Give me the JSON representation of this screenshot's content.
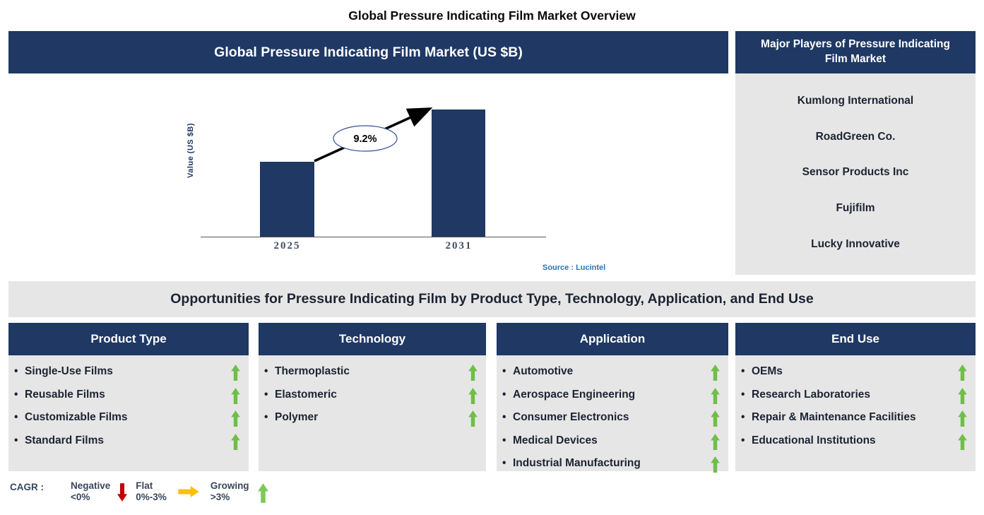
{
  "page_title": "Global Pressure Indicating Film Market Overview",
  "chart_data": {
    "type": "bar",
    "title": "Global Pressure Indicating Film Market (US $B)",
    "categories": [
      "2025",
      "2031"
    ],
    "values_relative": [
      0.59,
      1.0
    ],
    "growth_label": "9.2%",
    "ylabel": "Value (US $B)",
    "xlabel": "",
    "y_axis_numeric_labels": false,
    "legend_position": "none",
    "grid": false,
    "source": "Source : Lucintel",
    "annotation": "arrow from 2025 bar to 2031 bar labeled 9.2%"
  },
  "major_players": {
    "title": "Major Players of Pressure Indicating Film Market",
    "items": [
      "Kumlong International",
      "RoadGreen Co.",
      "Sensor Products Inc",
      "Fujifilm",
      "Lucky Innovative"
    ]
  },
  "opportunities": {
    "title": "Opportunities for Pressure Indicating Film by Product Type, Technology, Application, and End Use"
  },
  "columns": {
    "product_type": {
      "title": "Product Type",
      "items": [
        {
          "label": "Single-Use Films",
          "trend": "growing"
        },
        {
          "label": "Reusable Films",
          "trend": "growing"
        },
        {
          "label": "Customizable Films",
          "trend": "growing"
        },
        {
          "label": "Standard Films",
          "trend": "growing"
        }
      ]
    },
    "technology": {
      "title": "Technology",
      "items": [
        {
          "label": "Thermoplastic",
          "trend": "growing"
        },
        {
          "label": "Elastomeric",
          "trend": "growing"
        },
        {
          "label": "Polymer",
          "trend": "growing"
        }
      ]
    },
    "application": {
      "title": "Application",
      "items": [
        {
          "label": "Automotive",
          "trend": "growing"
        },
        {
          "label": "Aerospace Engineering",
          "trend": "growing"
        },
        {
          "label": "Consumer Electronics",
          "trend": "growing"
        },
        {
          "label": "Medical Devices",
          "trend": "growing"
        },
        {
          "label": "Industrial Manufacturing",
          "trend": "growing"
        }
      ]
    },
    "end_use": {
      "title": "End Use",
      "items": [
        {
          "label": "OEMs",
          "trend": "growing"
        },
        {
          "label": "Research Laboratories",
          "trend": "growing"
        },
        {
          "label": "Repair & Maintenance Facilities",
          "trend": "growing"
        },
        {
          "label": "Educational Institutions",
          "trend": "growing"
        }
      ]
    }
  },
  "legend": {
    "label": "CAGR :",
    "entries": [
      {
        "label": "Negative",
        "range": "<0%",
        "trend": "negative"
      },
      {
        "label": "Flat",
        "range": "0%-3%",
        "trend": "flat"
      },
      {
        "label": "Growing",
        "range": ">3%",
        "trend": "growing"
      }
    ]
  },
  "colors": {
    "navy": "#1F3864",
    "panel_gray": "#E7E6E6",
    "growing_green": "#6FBE48",
    "negative_red": "#C00000",
    "flat_orange": "#FFC000",
    "source_blue": "#2E74B5"
  }
}
